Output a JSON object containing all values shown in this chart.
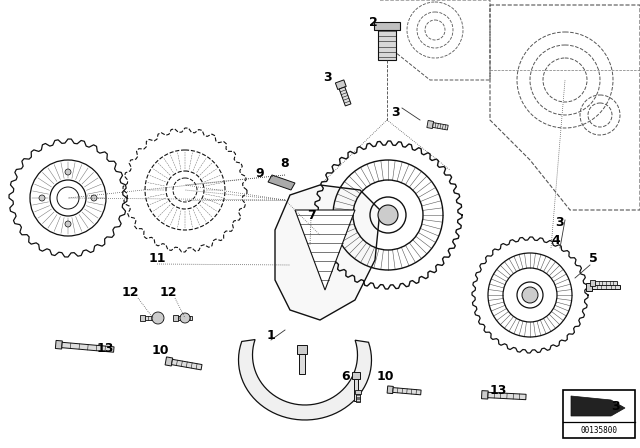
{
  "bg_color": "#ffffff",
  "part_number": "00135800",
  "line_color": "#111111",
  "dashed_color": "#333333",
  "figsize": [
    6.4,
    4.48
  ],
  "dpi": 100
}
